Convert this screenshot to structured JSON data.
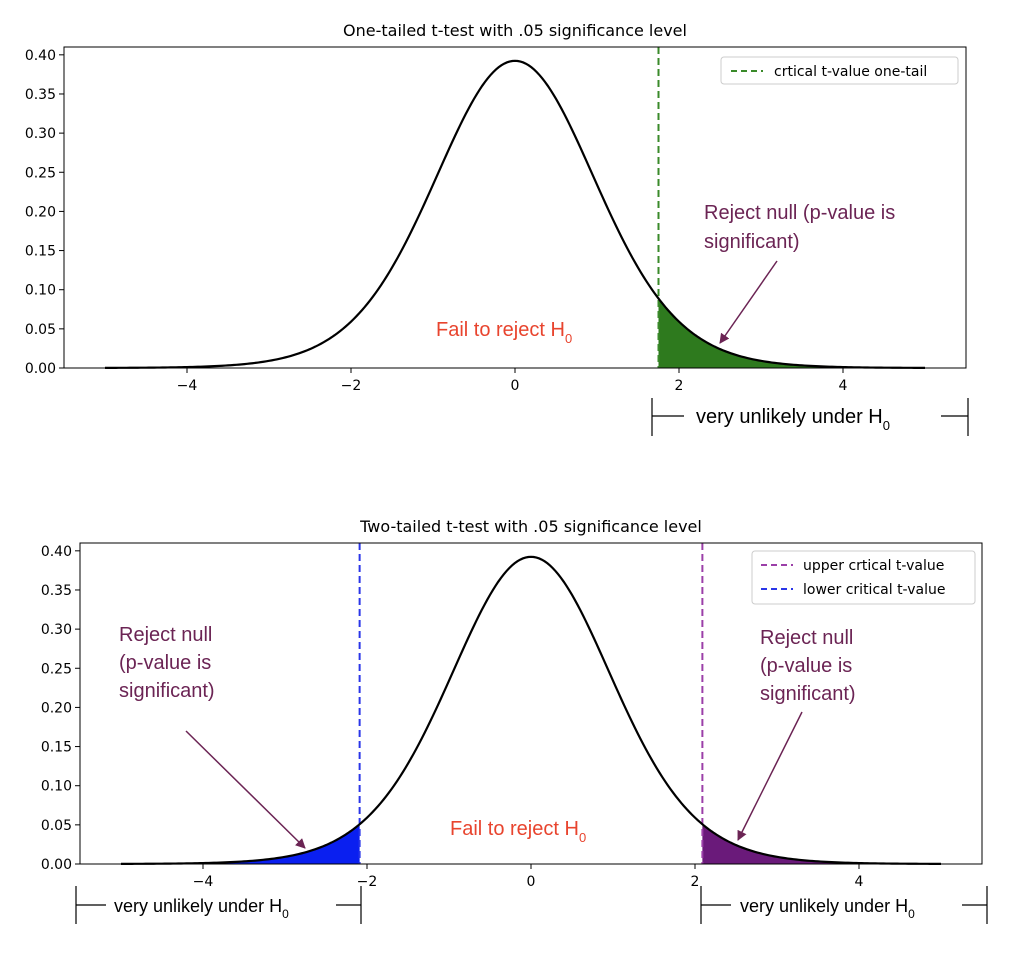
{
  "chart_data": [
    {
      "type": "line",
      "title": "One-tailed t-test with .05 significance level",
      "xlabel": "",
      "ylabel": "",
      "xlim": [
        -5.5,
        5.5
      ],
      "ylim": [
        0,
        0.41
      ],
      "x_ticks": [
        "−4",
        "−2",
        "0",
        "2",
        "4"
      ],
      "x_tick_values": [
        -4,
        -2,
        0,
        2,
        4
      ],
      "y_ticks": [
        "0.00",
        "0.05",
        "0.10",
        "0.15",
        "0.20",
        "0.25",
        "0.30",
        "0.35",
        "0.40"
      ],
      "y_tick_values": [
        0,
        0.05,
        0.1,
        0.15,
        0.2,
        0.25,
        0.3,
        0.35,
        0.4
      ],
      "curve": {
        "distribution": "t",
        "df": 15,
        "x_range": [
          -5,
          5
        ],
        "peak": 0.394,
        "color": "#000000"
      },
      "critical_lines": [
        {
          "name": "crtical t-value one-tail",
          "x": 1.75,
          "color": "#3a8a2a"
        }
      ],
      "shaded_regions": [
        {
          "from": 1.75,
          "to": 5,
          "color": "#2e7a1e"
        }
      ],
      "legend": {
        "position": "top-right",
        "entries": [
          "crtical t-value one-tail"
        ]
      },
      "annotations": {
        "reject_lines": [
          "Reject null (p-value is",
          "significant)"
        ],
        "fail_text": "Fail to reject H",
        "fail_sub": "0",
        "unlikely_text": "very unlikely under H",
        "unlikely_sub": "0"
      },
      "colors": {
        "reject_text": "#6b2454",
        "fail_text": "#e8442e",
        "arrow": "#6b2454"
      },
      "grid": false
    },
    {
      "type": "line",
      "title": "Two-tailed t-test with .05 significance level",
      "xlabel": "",
      "ylabel": "",
      "xlim": [
        -5.5,
        5.5
      ],
      "ylim": [
        0,
        0.41
      ],
      "x_ticks": [
        "−4",
        "−2",
        "0",
        "2",
        "4"
      ],
      "x_tick_values": [
        -4,
        -2,
        0,
        2,
        4
      ],
      "y_ticks": [
        "0.00",
        "0.05",
        "0.10",
        "0.15",
        "0.20",
        "0.25",
        "0.30",
        "0.35",
        "0.40"
      ],
      "y_tick_values": [
        0,
        0.05,
        0.1,
        0.15,
        0.2,
        0.25,
        0.3,
        0.35,
        0.4
      ],
      "curve": {
        "distribution": "t",
        "df": 15,
        "x_range": [
          -5,
          5
        ],
        "peak": 0.394,
        "color": "#000000"
      },
      "critical_lines": [
        {
          "name": "upper crtical t-value",
          "x": 2.09,
          "color": "#9b3fa8"
        },
        {
          "name": "lower critical t-value",
          "x": -2.09,
          "color": "#2a36e8"
        }
      ],
      "shaded_regions": [
        {
          "from": -5,
          "to": -2.09,
          "color": "#0a1ff0"
        },
        {
          "from": 2.09,
          "to": 5,
          "color": "#6a1a7a"
        }
      ],
      "legend": {
        "position": "top-right",
        "entries": [
          "upper crtical t-value",
          "lower critical t-value"
        ]
      },
      "annotations": {
        "reject_left_lines": [
          "Reject null",
          "(p-value is",
          "significant)"
        ],
        "reject_right_lines": [
          "Reject null",
          "(p-value is",
          "significant)"
        ],
        "fail_text": "Fail to reject H",
        "fail_sub": "0",
        "unlikely_text": "very unlikely under H",
        "unlikely_sub": "0"
      },
      "colors": {
        "reject_text": "#6b2454",
        "fail_text": "#e8442e",
        "arrow": "#6b2454"
      },
      "grid": false
    }
  ]
}
